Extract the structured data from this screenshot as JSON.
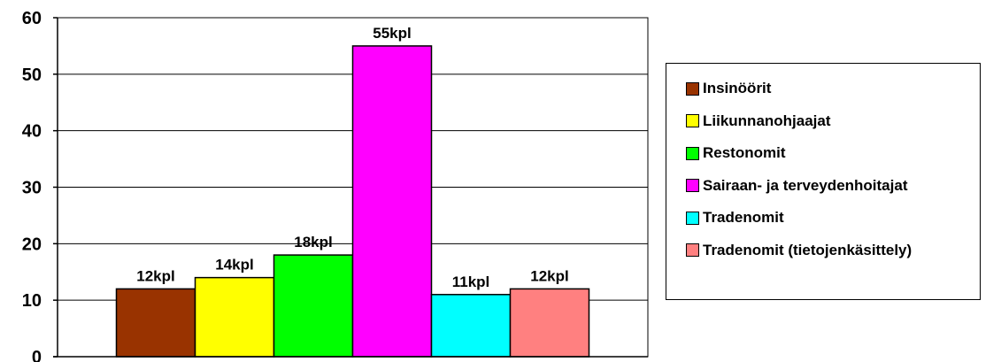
{
  "chart_data": {
    "type": "bar",
    "categories": [
      "Insinöörit",
      "Liikunnanohjaajat",
      "Restonomit",
      "Sairaan- ja terveydenhoitajat",
      "Tradenomit",
      "Tradenomit (tietojenkäsittely)"
    ],
    "values": [
      12,
      14,
      18,
      55,
      11,
      12
    ],
    "data_labels": [
      "12kpl",
      "14kpl",
      "18kpl",
      "55kpl",
      "11kpl",
      "12kpl"
    ],
    "colors": [
      "#993300",
      "#ffff00",
      "#00ff00",
      "#ff00ff",
      "#00ffff",
      "#ff8080"
    ],
    "ylim": [
      0,
      60
    ],
    "yticks": [
      "0",
      "10",
      "20",
      "30",
      "40",
      "50",
      "60"
    ],
    "grid": true,
    "legend_position": "right",
    "title": "",
    "xlabel": "",
    "ylabel": ""
  }
}
